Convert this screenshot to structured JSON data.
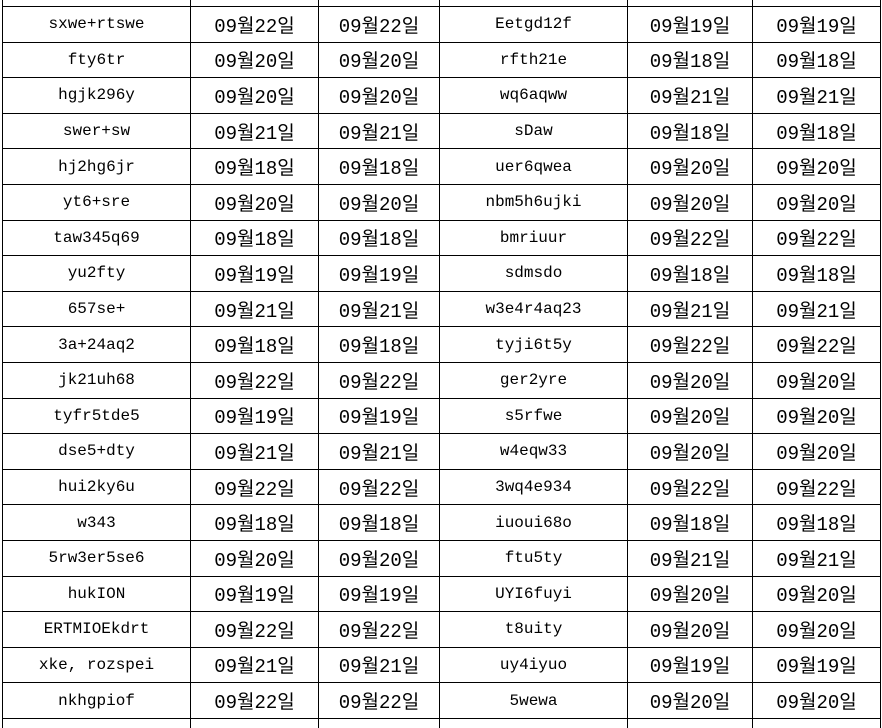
{
  "colors": {
    "background": "#ffffff",
    "border": "#000000",
    "text": "#000000"
  },
  "table": {
    "column_kinds": [
      "id",
      "date",
      "date",
      "id",
      "date",
      "date"
    ],
    "rows": [
      [
        "sxwe+rtswe",
        "09월22일",
        "09월22일",
        "Eetgd12f",
        "09월19일",
        "09월19일"
      ],
      [
        "fty6tr",
        "09월20일",
        "09월20일",
        "rfth21e",
        "09월18일",
        "09월18일"
      ],
      [
        "hgjk296y",
        "09월20일",
        "09월20일",
        "wq6aqww",
        "09월21일",
        "09월21일"
      ],
      [
        "swer+sw",
        "09월21일",
        "09월21일",
        "sDaw",
        "09월18일",
        "09월18일"
      ],
      [
        "hj2hg6jr",
        "09월18일",
        "09월18일",
        "uer6qwea",
        "09월20일",
        "09월20일"
      ],
      [
        "yt6+sre",
        "09월20일",
        "09월20일",
        "nbm5h6ujki",
        "09월20일",
        "09월20일"
      ],
      [
        "taw345q69",
        "09월18일",
        "09월18일",
        "bmriuur",
        "09월22일",
        "09월22일"
      ],
      [
        "yu2fty",
        "09월19일",
        "09월19일",
        "sdmsdo",
        "09월18일",
        "09월18일"
      ],
      [
        "657se+",
        "09월21일",
        "09월21일",
        "w3e4r4aq23",
        "09월21일",
        "09월21일"
      ],
      [
        "3a+24aq2",
        "09월18일",
        "09월18일",
        "tyji6t5y",
        "09월22일",
        "09월22일"
      ],
      [
        "jk21uh68",
        "09월22일",
        "09월22일",
        "ger2yre",
        "09월20일",
        "09월20일"
      ],
      [
        "tyfr5tde5",
        "09월19일",
        "09월19일",
        "s5rfwe",
        "09월20일",
        "09월20일"
      ],
      [
        "dse5+dty",
        "09월21일",
        "09월21일",
        "w4eqw33",
        "09월20일",
        "09월20일"
      ],
      [
        "hui2ky6u",
        "09월22일",
        "09월22일",
        "3wq4e934",
        "09월22일",
        "09월22일"
      ],
      [
        "w343",
        "09월18일",
        "09월18일",
        "iuoui68o",
        "09월18일",
        "09월18일"
      ],
      [
        "5rw3er5se6",
        "09월20일",
        "09월20일",
        "ftu5ty",
        "09월21일",
        "09월21일"
      ],
      [
        "hukION",
        "09월19일",
        "09월19일",
        "UYI6fuyi",
        "09월20일",
        "09월20일"
      ],
      [
        "ERTMIOEkdrt",
        "09월22일",
        "09월22일",
        "t8uity",
        "09월20일",
        "09월20일"
      ],
      [
        "xke, rozspei",
        "09월21일",
        "09월21일",
        "uy4iyuo",
        "09월19일",
        "09월19일"
      ],
      [
        "nkhgpiof",
        "09월22일",
        "09월22일",
        "5wewa",
        "09월20일",
        "09월20일"
      ]
    ]
  }
}
